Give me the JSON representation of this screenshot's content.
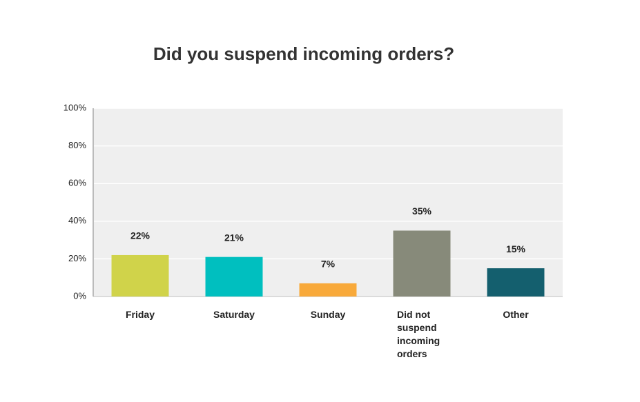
{
  "chart_data": {
    "type": "bar",
    "title": "Did you suspend incoming orders?",
    "categories": [
      "Friday",
      "Saturday",
      "Sunday",
      "Did not suspend incoming orders",
      "Other"
    ],
    "values": [
      22,
      21,
      7,
      35,
      15
    ],
    "value_labels": [
      "22%",
      "21%",
      "7%",
      "35%",
      "15%"
    ],
    "colors": [
      "#d0d34a",
      "#00bfbf",
      "#f8a93a",
      "#878a7a",
      "#145f6e"
    ],
    "ylim": [
      0,
      100
    ],
    "yticks": [
      {
        "value": 0,
        "label": "0%"
      },
      {
        "value": 20,
        "label": "20%"
      },
      {
        "value": 40,
        "label": "40%"
      },
      {
        "value": 60,
        "label": "60%"
      },
      {
        "value": 80,
        "label": "80%"
      },
      {
        "value": 100,
        "label": "100%"
      }
    ],
    "grid": true
  }
}
